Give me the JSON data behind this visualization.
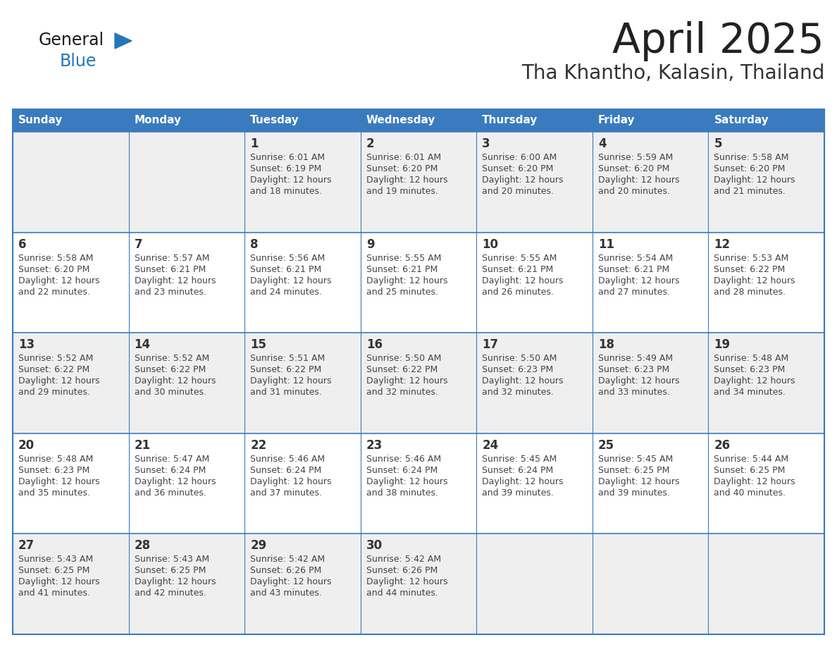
{
  "title": "April 2025",
  "subtitle": "Tha Khantho, Kalasin, Thailand",
  "header_bg_color": "#3a7bbf",
  "header_text_color": "#ffffff",
  "day_names": [
    "Sunday",
    "Monday",
    "Tuesday",
    "Wednesday",
    "Thursday",
    "Friday",
    "Saturday"
  ],
  "cell_bg_even": "#efefef",
  "cell_bg_odd": "#ffffff",
  "grid_line_color": "#3a7bbf",
  "date_text_color": "#333333",
  "info_text_color": "#444444",
  "title_color": "#222222",
  "subtitle_color": "#333333",
  "logo_general_color": "#1a1a1a",
  "logo_blue_color": "#2576b9",
  "weeks": [
    [
      {
        "date": "",
        "sunrise": "",
        "sunset": "",
        "daylight": ""
      },
      {
        "date": "",
        "sunrise": "",
        "sunset": "",
        "daylight": ""
      },
      {
        "date": "1",
        "sunrise": "6:01 AM",
        "sunset": "6:19 PM",
        "daylight": "12 hours and 18 minutes."
      },
      {
        "date": "2",
        "sunrise": "6:01 AM",
        "sunset": "6:20 PM",
        "daylight": "12 hours and 19 minutes."
      },
      {
        "date": "3",
        "sunrise": "6:00 AM",
        "sunset": "6:20 PM",
        "daylight": "12 hours and 20 minutes."
      },
      {
        "date": "4",
        "sunrise": "5:59 AM",
        "sunset": "6:20 PM",
        "daylight": "12 hours and 20 minutes."
      },
      {
        "date": "5",
        "sunrise": "5:58 AM",
        "sunset": "6:20 PM",
        "daylight": "12 hours and 21 minutes."
      }
    ],
    [
      {
        "date": "6",
        "sunrise": "5:58 AM",
        "sunset": "6:20 PM",
        "daylight": "12 hours and 22 minutes."
      },
      {
        "date": "7",
        "sunrise": "5:57 AM",
        "sunset": "6:21 PM",
        "daylight": "12 hours and 23 minutes."
      },
      {
        "date": "8",
        "sunrise": "5:56 AM",
        "sunset": "6:21 PM",
        "daylight": "12 hours and 24 minutes."
      },
      {
        "date": "9",
        "sunrise": "5:55 AM",
        "sunset": "6:21 PM",
        "daylight": "12 hours and 25 minutes."
      },
      {
        "date": "10",
        "sunrise": "5:55 AM",
        "sunset": "6:21 PM",
        "daylight": "12 hours and 26 minutes."
      },
      {
        "date": "11",
        "sunrise": "5:54 AM",
        "sunset": "6:21 PM",
        "daylight": "12 hours and 27 minutes."
      },
      {
        "date": "12",
        "sunrise": "5:53 AM",
        "sunset": "6:22 PM",
        "daylight": "12 hours and 28 minutes."
      }
    ],
    [
      {
        "date": "13",
        "sunrise": "5:52 AM",
        "sunset": "6:22 PM",
        "daylight": "12 hours and 29 minutes."
      },
      {
        "date": "14",
        "sunrise": "5:52 AM",
        "sunset": "6:22 PM",
        "daylight": "12 hours and 30 minutes."
      },
      {
        "date": "15",
        "sunrise": "5:51 AM",
        "sunset": "6:22 PM",
        "daylight": "12 hours and 31 minutes."
      },
      {
        "date": "16",
        "sunrise": "5:50 AM",
        "sunset": "6:22 PM",
        "daylight": "12 hours and 32 minutes."
      },
      {
        "date": "17",
        "sunrise": "5:50 AM",
        "sunset": "6:23 PM",
        "daylight": "12 hours and 32 minutes."
      },
      {
        "date": "18",
        "sunrise": "5:49 AM",
        "sunset": "6:23 PM",
        "daylight": "12 hours and 33 minutes."
      },
      {
        "date": "19",
        "sunrise": "5:48 AM",
        "sunset": "6:23 PM",
        "daylight": "12 hours and 34 minutes."
      }
    ],
    [
      {
        "date": "20",
        "sunrise": "5:48 AM",
        "sunset": "6:23 PM",
        "daylight": "12 hours and 35 minutes."
      },
      {
        "date": "21",
        "sunrise": "5:47 AM",
        "sunset": "6:24 PM",
        "daylight": "12 hours and 36 minutes."
      },
      {
        "date": "22",
        "sunrise": "5:46 AM",
        "sunset": "6:24 PM",
        "daylight": "12 hours and 37 minutes."
      },
      {
        "date": "23",
        "sunrise": "5:46 AM",
        "sunset": "6:24 PM",
        "daylight": "12 hours and 38 minutes."
      },
      {
        "date": "24",
        "sunrise": "5:45 AM",
        "sunset": "6:24 PM",
        "daylight": "12 hours and 39 minutes."
      },
      {
        "date": "25",
        "sunrise": "5:45 AM",
        "sunset": "6:25 PM",
        "daylight": "12 hours and 39 minutes."
      },
      {
        "date": "26",
        "sunrise": "5:44 AM",
        "sunset": "6:25 PM",
        "daylight": "12 hours and 40 minutes."
      }
    ],
    [
      {
        "date": "27",
        "sunrise": "5:43 AM",
        "sunset": "6:25 PM",
        "daylight": "12 hours and 41 minutes."
      },
      {
        "date": "28",
        "sunrise": "5:43 AM",
        "sunset": "6:25 PM",
        "daylight": "12 hours and 42 minutes."
      },
      {
        "date": "29",
        "sunrise": "5:42 AM",
        "sunset": "6:26 PM",
        "daylight": "12 hours and 43 minutes."
      },
      {
        "date": "30",
        "sunrise": "5:42 AM",
        "sunset": "6:26 PM",
        "daylight": "12 hours and 44 minutes."
      },
      {
        "date": "",
        "sunrise": "",
        "sunset": "",
        "daylight": ""
      },
      {
        "date": "",
        "sunrise": "",
        "sunset": "",
        "daylight": ""
      },
      {
        "date": "",
        "sunrise": "",
        "sunset": "",
        "daylight": ""
      }
    ]
  ]
}
